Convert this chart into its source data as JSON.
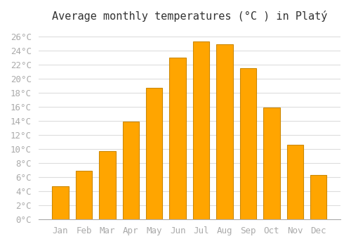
{
  "title": "Average monthly temperatures (°C ) in Platý",
  "months": [
    "Jan",
    "Feb",
    "Mar",
    "Apr",
    "May",
    "Jun",
    "Jul",
    "Aug",
    "Sep",
    "Oct",
    "Nov",
    "Dec"
  ],
  "values": [
    4.7,
    6.9,
    9.7,
    13.9,
    18.7,
    23.0,
    25.3,
    24.9,
    21.5,
    15.9,
    10.6,
    6.3
  ],
  "bar_color": "#FFA500",
  "bar_edge_color": "#CC8800",
  "background_color": "#ffffff",
  "grid_color": "#dddddd",
  "ytick_labels": [
    "0°C",
    "2°C",
    "4°C",
    "6°C",
    "8°C",
    "10°C",
    "12°C",
    "14°C",
    "16°C",
    "18°C",
    "20°C",
    "22°C",
    "24°C",
    "26°C"
  ],
  "ytick_values": [
    0,
    2,
    4,
    6,
    8,
    10,
    12,
    14,
    16,
    18,
    20,
    22,
    24,
    26
  ],
  "ylim": [
    0,
    27
  ],
  "title_fontsize": 11,
  "tick_fontsize": 9,
  "tick_font_family": "monospace"
}
